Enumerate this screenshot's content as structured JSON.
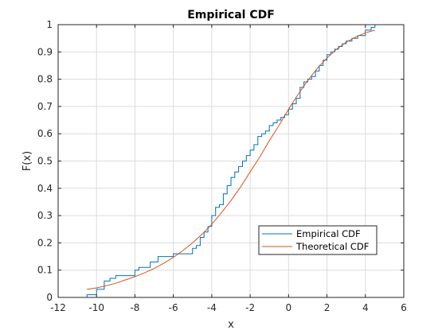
{
  "chart_data": {
    "type": "line",
    "title": "Empirical CDF",
    "xlabel": "x",
    "ylabel": "F(x)",
    "xlim": [
      -12,
      6
    ],
    "ylim": [
      0,
      1
    ],
    "xticks": [
      -12,
      -10,
      -8,
      -6,
      -4,
      -2,
      0,
      2,
      4,
      6
    ],
    "yticks": [
      0,
      0.1,
      0.2,
      0.3,
      0.4,
      0.5,
      0.6,
      0.7,
      0.8,
      0.9,
      1
    ],
    "xtick_labels": [
      "-12",
      "-10",
      "-8",
      "-6",
      "-4",
      "-2",
      "0",
      "2",
      "4",
      "6"
    ],
    "ytick_labels": [
      "0",
      "0.1",
      "0.2",
      "0.3",
      "0.4",
      "0.5",
      "0.6",
      "0.7",
      "0.8",
      "0.9",
      "1"
    ],
    "grid": true,
    "legend_position": "lower-right",
    "series": [
      {
        "name": "Empirical CDF",
        "color": "#0072BD",
        "step": true,
        "x": [
          -10.5,
          -10.0,
          -9.6,
          -9.3,
          -9.0,
          -8.0,
          -7.8,
          -7.2,
          -6.8,
          -6.0,
          -5.0,
          -4.8,
          -4.6,
          -4.4,
          -4.2,
          -4.0,
          -3.8,
          -3.6,
          -3.4,
          -3.2,
          -3.0,
          -2.8,
          -2.6,
          -2.4,
          -2.2,
          -2.0,
          -1.8,
          -1.6,
          -1.4,
          -1.2,
          -1.0,
          -0.8,
          -0.6,
          -0.4,
          -0.2,
          0.0,
          0.2,
          0.4,
          0.6,
          0.8,
          1.0,
          1.2,
          1.4,
          1.6,
          1.8,
          2.0,
          2.2,
          2.4,
          2.6,
          2.8,
          3.0,
          3.3,
          3.6,
          4.0,
          4.3,
          4.5
        ],
        "y": [
          0.01,
          0.03,
          0.06,
          0.07,
          0.08,
          0.1,
          0.11,
          0.13,
          0.15,
          0.16,
          0.18,
          0.19,
          0.22,
          0.24,
          0.26,
          0.3,
          0.33,
          0.34,
          0.38,
          0.41,
          0.44,
          0.46,
          0.48,
          0.5,
          0.52,
          0.54,
          0.56,
          0.59,
          0.6,
          0.61,
          0.63,
          0.64,
          0.65,
          0.66,
          0.67,
          0.69,
          0.71,
          0.73,
          0.77,
          0.79,
          0.8,
          0.81,
          0.83,
          0.85,
          0.87,
          0.89,
          0.9,
          0.91,
          0.92,
          0.93,
          0.94,
          0.95,
          0.96,
          0.98,
          0.99,
          1.0
        ]
      },
      {
        "name": "Theoretical CDF",
        "color": "#D95319",
        "step": false,
        "x": [
          -10.5,
          -10.0,
          -9.5,
          -9.0,
          -8.5,
          -8.0,
          -7.5,
          -7.0,
          -6.5,
          -6.0,
          -5.5,
          -5.0,
          -4.5,
          -4.0,
          -3.5,
          -3.0,
          -2.5,
          -2.0,
          -1.5,
          -1.0,
          -0.5,
          0.0,
          0.5,
          1.0,
          1.5,
          2.0,
          2.5,
          3.0,
          3.5,
          4.0,
          4.5
        ],
        "y": [
          0.03,
          0.035,
          0.043,
          0.052,
          0.064,
          0.076,
          0.09,
          0.106,
          0.125,
          0.147,
          0.172,
          0.2,
          0.232,
          0.268,
          0.31,
          0.355,
          0.405,
          0.46,
          0.515,
          0.575,
          0.63,
          0.69,
          0.745,
          0.795,
          0.84,
          0.878,
          0.91,
          0.936,
          0.955,
          0.97,
          0.98
        ]
      }
    ]
  }
}
